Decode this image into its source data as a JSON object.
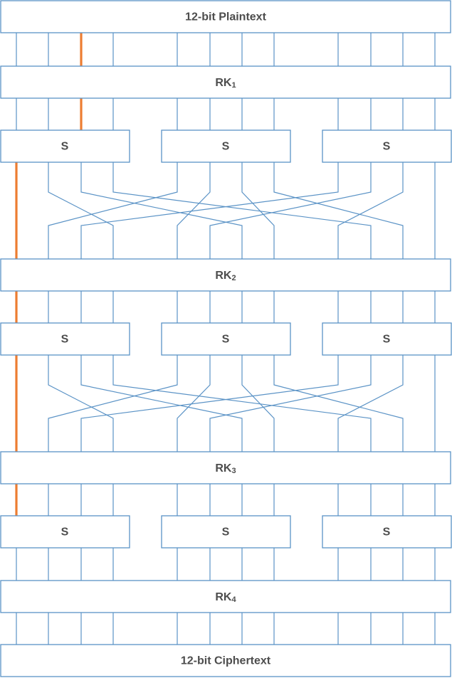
{
  "plaintext_label": "12-bit Plaintext",
  "ciphertext_label": "12-bit Ciphertext",
  "round_keys": [
    {
      "name": "RK",
      "index": "1"
    },
    {
      "name": "RK",
      "index": "2"
    },
    {
      "name": "RK",
      "index": "3"
    },
    {
      "name": "RK",
      "index": "4"
    }
  ],
  "sbox_label": "S",
  "sbox_layers": 3,
  "sboxes_per_layer": 3,
  "block_bits": 12,
  "permutation": [
    0,
    3,
    6,
    9,
    1,
    4,
    7,
    10,
    2,
    5,
    8,
    11
  ],
  "colors": {
    "wire": "#5b93c6",
    "highlight": "#ed7d31",
    "text": "#4d4d4d"
  }
}
